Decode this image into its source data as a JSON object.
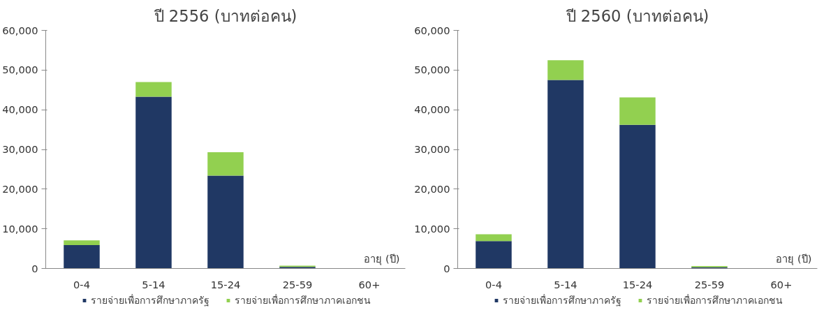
{
  "chart_data": [
    {
      "type": "bar",
      "title": "ปี 2556 (บาทต่อคน)",
      "categories": [
        "0-4",
        "5-14",
        "15-24",
        "25-59",
        "60+"
      ],
      "stacked": true,
      "series": [
        {
          "name": "รายจ่ายเพื่อการศึกษาภาครัฐ",
          "color": "#203864",
          "values": [
            5900,
            43300,
            23400,
            400,
            0
          ]
        },
        {
          "name": "รายจ่ายเพื่อการศึกษาภาคเอกชน",
          "color": "#92d050",
          "values": [
            1200,
            3700,
            5900,
            300,
            0
          ]
        }
      ],
      "ylim": [
        0,
        60000
      ],
      "yticks": [
        0,
        {
          "value": 10000,
          "label": "10,000"
        },
        {
          "value": 20000,
          "label": "20,000"
        },
        {
          "value": 30000,
          "label": "30,000"
        },
        {
          "value": 40000,
          "label": "40,000"
        },
        {
          "value": 50000,
          "label": "50,000"
        },
        {
          "value": 60000,
          "label": "60,000"
        }
      ],
      "annotations": [
        "อายุ (ปี)"
      ],
      "grid": false,
      "legend": "bottom"
    },
    {
      "type": "bar",
      "title": "ปี 2560 (บาทต่อคน)",
      "categories": [
        "0-4",
        "5-14",
        "15-24",
        "25-59",
        "60+"
      ],
      "stacked": true,
      "series": [
        {
          "name": "รายจ่ายเพื่อการศึกษาภาครัฐ",
          "color": "#203864",
          "values": [
            6900,
            47500,
            36200,
            300,
            0
          ]
        },
        {
          "name": "รายจ่ายเพื่อการศึกษาภาคเอกชน",
          "color": "#92d050",
          "values": [
            1700,
            5000,
            6900,
            300,
            0
          ]
        }
      ],
      "ylim": [
        0,
        60000
      ],
      "yticks": [
        0,
        {
          "value": 10000,
          "label": "10,000"
        },
        {
          "value": 20000,
          "label": "20,000"
        },
        {
          "value": 30000,
          "label": "30,000"
        },
        {
          "value": 40000,
          "label": "40,000"
        },
        {
          "value": 50000,
          "label": "50,000"
        },
        {
          "value": 60000,
          "label": "60,000"
        }
      ],
      "annotations": [
        "อายุ (ปี)"
      ],
      "grid": false,
      "legend": "bottom"
    }
  ]
}
